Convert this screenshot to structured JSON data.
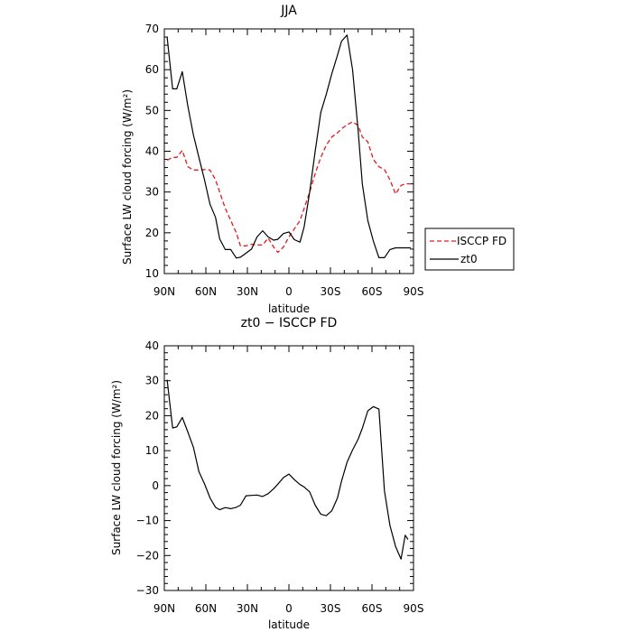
{
  "chart_data": [
    {
      "type": "line",
      "title": "JJA",
      "xlabel": "latitude",
      "ylabel": "Surface LW cloud forcing (W/m²)",
      "xlim": [
        90,
        -90
      ],
      "ylim": [
        10,
        70
      ],
      "x_ticks": [
        90,
        60,
        30,
        0,
        -30,
        -60,
        -90
      ],
      "x_tick_labels": [
        "90N",
        "60N",
        "30N",
        "0",
        "30S",
        "60S",
        "90S"
      ],
      "y_ticks": [
        10,
        20,
        30,
        40,
        50,
        60,
        70
      ],
      "y_tick_labels": [
        "10",
        "20",
        "30",
        "40",
        "50",
        "60",
        "70"
      ],
      "legend": "right",
      "series": [
        {
          "name": "ISCCP FD",
          "color": "#e41a1c",
          "dash": "dashed",
          "x": [
            88,
            84,
            81,
            77,
            73,
            69,
            65,
            61,
            57,
            53,
            50,
            46,
            42,
            38,
            35,
            31,
            27,
            23,
            19,
            15,
            11,
            8,
            4,
            0,
            -4,
            -8,
            -11,
            -15,
            -19,
            -23,
            -27,
            -31,
            -35,
            -38,
            -42,
            -46,
            -50,
            -53,
            -57,
            -61,
            -65,
            -69,
            -73,
            -77,
            -81,
            -84,
            -88
          ],
          "y": [
            37.8,
            38.5,
            38.5,
            40.2,
            36.2,
            35.4,
            35.4,
            35.5,
            35.4,
            33,
            30,
            26,
            23,
            20,
            16.8,
            16.8,
            17.2,
            17,
            17,
            18.7,
            16.5,
            15.2,
            16.5,
            19,
            21,
            23,
            26,
            30,
            34.5,
            38.5,
            41.5,
            43.5,
            44.5,
            45.5,
            46.5,
            47.2,
            46.3,
            43.5,
            42.3,
            38,
            36.2,
            35.5,
            33,
            29.5,
            31.6,
            32,
            32
          ]
        },
        {
          "name": "zt0",
          "color": "#000000",
          "dash": "solid",
          "x": [
            88,
            84,
            81,
            77,
            73,
            69,
            65,
            61,
            57,
            53,
            50,
            46,
            42,
            38,
            35,
            31,
            27,
            23,
            19,
            15,
            11,
            8,
            4,
            0,
            -4,
            -8,
            -11,
            -15,
            -19,
            -23,
            -27,
            -31,
            -35,
            -38,
            -42,
            -46,
            -50,
            -53,
            -57,
            -61,
            -65,
            -69,
            -73,
            -77,
            -81,
            -84,
            -88
          ],
          "y": [
            68,
            55.3,
            55.3,
            59.5,
            51,
            44,
            38.5,
            33,
            27,
            23.8,
            18.5,
            15.9,
            15.9,
            13.8,
            14,
            15,
            16,
            19,
            20.5,
            19,
            18.2,
            18.4,
            19.8,
            20.2,
            18.3,
            17.7,
            21.5,
            30,
            40,
            49.5,
            54,
            59,
            63.5,
            67,
            68.5,
            60,
            45,
            32,
            23,
            18,
            13.9,
            13.9,
            15.9,
            16.3,
            16.3,
            16.3,
            16.3
          ]
        }
      ]
    },
    {
      "type": "line",
      "title": "zt0 − ISCCP FD",
      "xlabel": "latitude",
      "ylabel": "Surface LW cloud forcing (W/m²)",
      "xlim": [
        90,
        -90
      ],
      "ylim": [
        -30,
        40
      ],
      "x_ticks": [
        90,
        60,
        30,
        0,
        -30,
        -60,
        -90
      ],
      "x_tick_labels": [
        "90N",
        "60N",
        "30N",
        "0",
        "30S",
        "60S",
        "90S"
      ],
      "y_ticks": [
        -30,
        -20,
        -10,
        0,
        10,
        20,
        30,
        40
      ],
      "y_tick_labels": [
        "−30",
        "−20",
        "−10",
        "0",
        "10",
        "20",
        "30",
        "40"
      ],
      "series": [
        {
          "color": "#000000",
          "dash": "solid",
          "x": [
            88,
            84,
            81,
            77,
            73,
            69,
            65,
            61,
            57,
            53,
            50,
            46,
            42,
            38,
            35,
            31,
            27,
            23,
            19,
            15,
            11,
            8,
            4,
            0,
            -4,
            -8,
            -11,
            -15,
            -19,
            -23,
            -27,
            -31,
            -35,
            -38,
            -42,
            -46,
            -50,
            -53,
            -57,
            -61,
            -65,
            -69,
            -73,
            -77,
            -81,
            -84,
            -86
          ],
          "y": [
            30.3,
            16.5,
            16.8,
            19.5,
            15.3,
            11,
            4,
            0.5,
            -3.5,
            -6.2,
            -6.9,
            -6.3,
            -6.6,
            -6.2,
            -5.6,
            -2.9,
            -2.8,
            -2.7,
            -3.1,
            -2.3,
            -0.9,
            0.4,
            2.3,
            3.3,
            1.7,
            0.3,
            -0.4,
            -1.8,
            -5.6,
            -8.2,
            -8.6,
            -7.2,
            -3.6,
            1.3,
            6.7,
            10.2,
            13.3,
            16.4,
            21.4,
            22.6,
            21.9,
            -1.5,
            -11.4,
            -17.4,
            -21,
            -14.2,
            -15.4
          ]
        }
      ]
    }
  ]
}
